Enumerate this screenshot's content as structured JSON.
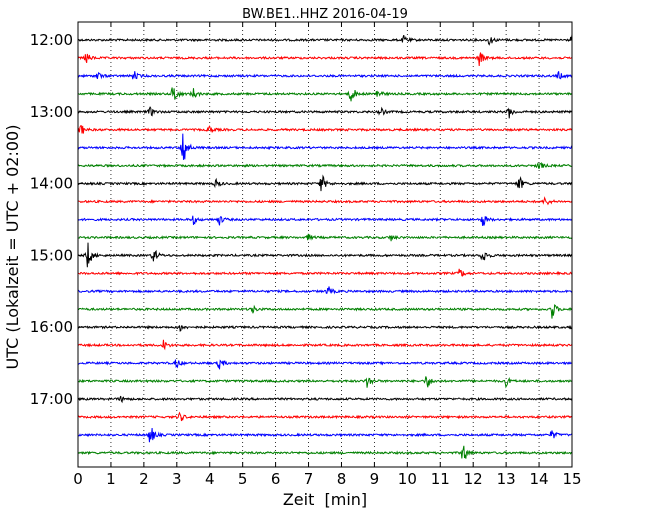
{
  "chart_data": {
    "type": "line",
    "title": "BW.BE1..HHZ 2016-04-19",
    "xlabel": "Zeit  [min]",
    "ylabel": "UTC (Lokalzeit = UTC + 02:00)",
    "xlim": [
      0,
      15
    ],
    "x_ticks": [
      0,
      1,
      2,
      3,
      4,
      5,
      6,
      7,
      8,
      9,
      10,
      11,
      12,
      13,
      14,
      15
    ],
    "y_ticks": [
      "12:00",
      "13:00",
      "14:00",
      "15:00",
      "16:00",
      "17:00"
    ],
    "trace_interval_minutes": 15,
    "trace_colors": [
      "#000000",
      "#ff0000",
      "#0000ff",
      "#008000"
    ],
    "grid": "vertical dotted",
    "traces": [
      {
        "start": "12:00",
        "events": [
          {
            "t": 9.9,
            "a": 4
          },
          {
            "t": 12.5,
            "a": 5
          },
          {
            "t": 15.0,
            "a": 5
          }
        ]
      },
      {
        "start": "12:15",
        "events": [
          {
            "t": 0.25,
            "a": 6
          },
          {
            "t": 12.2,
            "a": 8
          }
        ]
      },
      {
        "start": "12:30",
        "events": [
          {
            "t": 0.6,
            "a": 4
          },
          {
            "t": 1.7,
            "a": 5
          },
          {
            "t": 14.6,
            "a": 4
          }
        ]
      },
      {
        "start": "12:45",
        "events": [
          {
            "t": 2.9,
            "a": 12
          },
          {
            "t": 3.5,
            "a": 6
          },
          {
            "t": 8.3,
            "a": 10
          },
          {
            "t": 9.1,
            "a": 5
          }
        ]
      },
      {
        "start": "13:00",
        "events": [
          {
            "t": 2.2,
            "a": 5
          },
          {
            "t": 9.2,
            "a": 4
          },
          {
            "t": 13.1,
            "a": 6
          }
        ]
      },
      {
        "start": "13:15",
        "events": [
          {
            "t": 0.1,
            "a": 6
          },
          {
            "t": 4.0,
            "a": 4
          }
        ]
      },
      {
        "start": "13:30",
        "events": [
          {
            "t": 3.2,
            "a": 22
          }
        ]
      },
      {
        "start": "13:45",
        "events": [
          {
            "t": 14.0,
            "a": 5
          }
        ]
      },
      {
        "start": "14:00",
        "events": [
          {
            "t": 4.2,
            "a": 4
          },
          {
            "t": 7.4,
            "a": 10
          },
          {
            "t": 13.4,
            "a": 8
          }
        ]
      },
      {
        "start": "14:15",
        "events": [
          {
            "t": 14.2,
            "a": 5
          }
        ]
      },
      {
        "start": "14:30",
        "events": [
          {
            "t": 3.5,
            "a": 5
          },
          {
            "t": 4.3,
            "a": 5
          },
          {
            "t": 12.3,
            "a": 7
          }
        ]
      },
      {
        "start": "14:45",
        "events": [
          {
            "t": 7.0,
            "a": 3
          },
          {
            "t": 9.5,
            "a": 3
          }
        ]
      },
      {
        "start": "15:00",
        "events": [
          {
            "t": 0.3,
            "a": 14
          },
          {
            "t": 2.3,
            "a": 8
          },
          {
            "t": 12.3,
            "a": 8
          }
        ]
      },
      {
        "start": "15:15",
        "events": [
          {
            "t": 11.6,
            "a": 5
          }
        ]
      },
      {
        "start": "15:30",
        "events": [
          {
            "t": 7.6,
            "a": 5
          }
        ]
      },
      {
        "start": "15:45",
        "events": [
          {
            "t": 5.3,
            "a": 4
          },
          {
            "t": 14.4,
            "a": 10
          }
        ]
      },
      {
        "start": "16:00",
        "events": [
          {
            "t": 3.1,
            "a": 4
          },
          {
            "t": 15.0,
            "a": 4
          }
        ]
      },
      {
        "start": "16:15",
        "events": [
          {
            "t": 2.6,
            "a": 5
          }
        ]
      },
      {
        "start": "16:30",
        "events": [
          {
            "t": 3.0,
            "a": 5
          },
          {
            "t": 4.3,
            "a": 6
          }
        ]
      },
      {
        "start": "16:45",
        "events": [
          {
            "t": 8.8,
            "a": 7
          },
          {
            "t": 10.6,
            "a": 8
          },
          {
            "t": 13.0,
            "a": 5
          }
        ]
      },
      {
        "start": "17:00",
        "events": [
          {
            "t": 1.3,
            "a": 3
          }
        ]
      },
      {
        "start": "17:15",
        "events": [
          {
            "t": 3.1,
            "a": 5
          }
        ]
      },
      {
        "start": "17:30",
        "events": [
          {
            "t": 2.2,
            "a": 11
          },
          {
            "t": 14.4,
            "a": 5
          }
        ]
      },
      {
        "start": "17:45",
        "events": [
          {
            "t": 11.7,
            "a": 12
          }
        ]
      }
    ]
  }
}
